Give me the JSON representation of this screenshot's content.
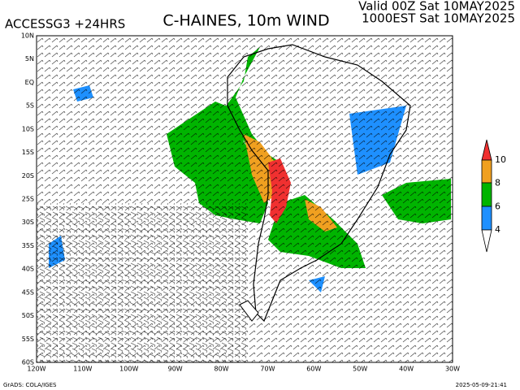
{
  "header": {
    "model": "ACCESSG3 +24HRS",
    "title": "C-HAINES, 10m WIND",
    "valid": "Valid 00Z Sat 10MAY2025",
    "local": "1000EST Sat 10MAY2025"
  },
  "map": {
    "lat_labels": [
      "10N",
      "5N",
      "EQ",
      "5S",
      "10S",
      "15S",
      "20S",
      "25S",
      "30S",
      "35S",
      "40S",
      "45S",
      "50S",
      "55S",
      "60S"
    ],
    "lon_labels": [
      "120W",
      "110W",
      "100W",
      "90W",
      "80W",
      "70W",
      "60W",
      "50W",
      "40W",
      "30W"
    ]
  },
  "colorbar": {
    "labels": [
      "10",
      "8",
      "6",
      "4"
    ]
  },
  "footer": {
    "left": "GrADS: COLA/IGES",
    "right": "2025-05-09-21:41"
  }
}
